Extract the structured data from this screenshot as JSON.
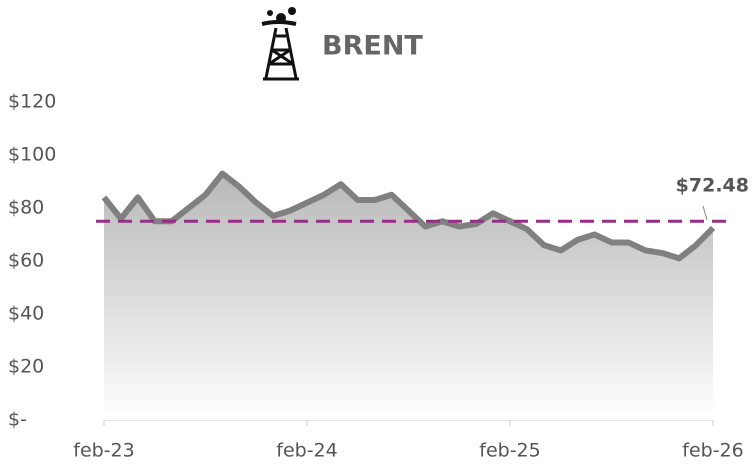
{
  "chart_data": {
    "type": "area-line",
    "title": "BRENT",
    "categories": [
      "feb-23",
      null,
      null,
      null,
      null,
      null,
      null,
      null,
      null,
      null,
      null,
      null,
      "feb-24",
      null,
      null,
      null,
      null,
      null,
      null,
      null,
      null,
      null,
      null,
      null,
      "feb-25",
      null,
      null,
      null,
      null,
      null,
      null,
      null,
      null,
      null,
      null,
      null,
      "feb-26"
    ],
    "series": [
      {
        "name": "BRENT",
        "color": "#808080",
        "values": [
          84,
          76,
          84,
          75,
          75,
          80,
          85,
          93,
          88,
          82,
          77,
          79,
          82,
          85,
          89,
          83,
          83,
          85,
          79,
          73,
          75,
          73,
          74,
          78,
          75,
          72,
          66,
          64,
          68,
          70,
          67,
          67,
          64,
          63,
          61,
          66,
          72.48
        ],
        "value_labels": [
          null,
          null,
          null,
          null,
          null,
          null,
          null,
          null,
          null,
          null,
          null,
          null,
          null,
          null,
          null,
          null,
          null,
          null,
          null,
          null,
          null,
          null,
          null,
          null,
          null,
          null,
          null,
          null,
          null,
          null,
          null,
          null,
          null,
          null,
          null,
          null,
          "$72.48"
        ]
      }
    ],
    "reference_line": {
      "value": 75,
      "color": "#9b2a8f"
    },
    "ylim": [
      0,
      120
    ],
    "yticks": [
      {
        "value": 0,
        "label": "$-"
      },
      {
        "value": 20,
        "label": "$20"
      },
      {
        "value": 40,
        "label": "$40"
      },
      {
        "value": 60,
        "label": "$60"
      },
      {
        "value": 80,
        "label": "$80"
      },
      {
        "value": 100,
        "label": "$100"
      },
      {
        "value": 120,
        "label": "$120"
      }
    ]
  }
}
